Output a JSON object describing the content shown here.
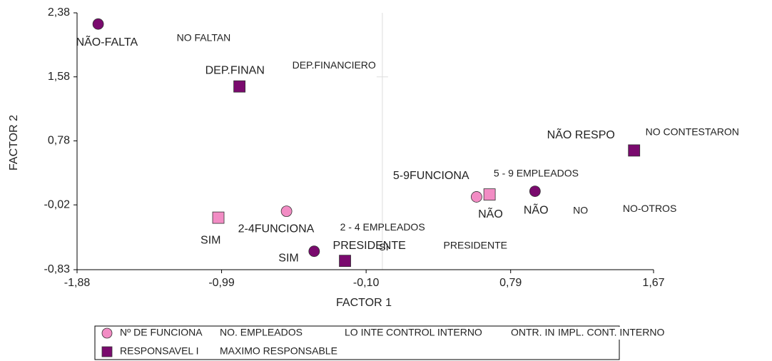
{
  "chart_data": {
    "type": "scatter",
    "xlabel": "FACTOR 1",
    "ylabel": "FACTOR 2",
    "xlim": [
      -1.88,
      1.67
    ],
    "xticks": [
      {
        "value": -1.88,
        "label": "-1,88"
      },
      {
        "value": -0.99,
        "label": "-0,99"
      },
      {
        "value": -0.1,
        "label": "-0,10"
      },
      {
        "value": 0.79,
        "label": "0,79"
      },
      {
        "value": 1.67,
        "label": "1,67"
      }
    ],
    "ylim": [
      -0.83,
      2.38
    ],
    "yticks": [
      {
        "value": 2.38,
        "label": "2,38"
      },
      {
        "value": 1.58,
        "label": "1,58"
      },
      {
        "value": 0.78,
        "label": "0,78"
      },
      {
        "value": -0.02,
        "label": "-0,02"
      },
      {
        "value": -0.83,
        "label": "-0,83"
      }
    ],
    "crosshair": {
      "x": 0,
      "y": 1.58
    },
    "series": [
      {
        "name": "Nº DE FUNCIONA",
        "name_es": "NO. EMPLEADOS",
        "marker": "circle",
        "color": "#f28cc4",
        "x": [
          -0.59,
          0.58
        ],
        "values": [
          -0.1,
          0.08
        ],
        "labels": [
          [
            "2-4FUNCIONA",
            "2 - 4 EMPLEADOS"
          ],
          [
            "5-9FUNCIONA",
            "5 - 9 EMPLEADOS"
          ]
        ]
      },
      {
        "name": "LO INTE",
        "name_es": "CONTROL INTERNO",
        "marker": "square",
        "color": "#f28cc4",
        "x": [
          -1.01,
          0.66
        ],
        "values": [
          -0.18,
          0.11
        ],
        "labels": [
          [
            "SIM"
          ],
          [
            "NÃO",
            "NO"
          ]
        ]
      },
      {
        "name": "ONTR. IN",
        "name_es": "IMPL. CONT. INTERNO",
        "marker": "circle",
        "color": "#7a0a6e",
        "x": [
          -1.75,
          -0.42,
          0.94
        ],
        "values": [
          2.24,
          -0.6,
          0.15
        ],
        "labels": [
          [
            "NÃO-FALTA",
            "NO FALTAN"
          ],
          [
            "SIM",
            "SI"
          ],
          [
            "NÃO",
            "NO-OTROS"
          ]
        ]
      },
      {
        "name": "RESPONSAVEL I",
        "name_es": "MAXIMO RESPONSABLE",
        "marker": "square",
        "color": "#7a0a6e",
        "x": [
          -0.88,
          -0.23,
          1.55
        ],
        "values": [
          1.46,
          -0.72,
          0.66
        ],
        "labels": [
          [
            "DEP.FINAN",
            "DEP.FINANCIERO"
          ],
          [
            "PRESIDENTE",
            "PRESIDENTE"
          ],
          [
            "NÃO RESPO",
            "NO CONTESTARON"
          ]
        ]
      }
    ]
  }
}
